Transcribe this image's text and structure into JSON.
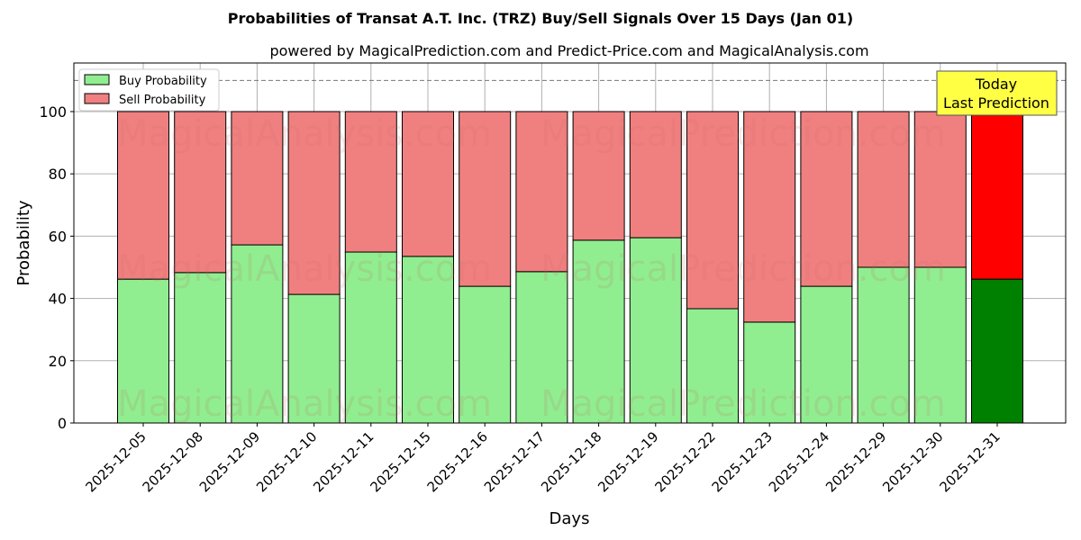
{
  "chart_data": {
    "type": "bar",
    "stacked": true,
    "title": "Probabilities of Transat A.T. Inc. (TRZ) Buy/Sell Signals Over 15 Days (Jan 01)",
    "subtitle": "powered by MagicalPrediction.com and Predict-Price.com and MagicalAnalysis.com",
    "xlabel": "Days",
    "ylabel": "Probability",
    "ylim": [
      0,
      115.6
    ],
    "yticks": [
      0,
      20,
      40,
      60,
      80,
      100
    ],
    "grid": true,
    "legend_position": "top-left",
    "reference_line": 110,
    "categories": [
      "2025-12-05",
      "2025-12-08",
      "2025-12-09",
      "2025-12-10",
      "2025-12-11",
      "2025-12-15",
      "2025-12-16",
      "2025-12-17",
      "2025-12-18",
      "2025-12-19",
      "2025-12-22",
      "2025-12-23",
      "2025-12-24",
      "2025-12-29",
      "2025-12-30",
      "2025-12-31"
    ],
    "series": [
      {
        "name": "Buy Probability",
        "color": "#90ee90",
        "today_color": "#008000",
        "values": [
          46.2,
          48.3,
          57.2,
          41.3,
          54.9,
          53.5,
          43.9,
          48.6,
          58.7,
          59.5,
          36.7,
          32.4,
          43.9,
          50.0,
          50.0,
          46.2
        ]
      },
      {
        "name": "Sell Probability",
        "color": "#f08080",
        "today_color": "#ff0000",
        "values": [
          53.8,
          51.7,
          42.8,
          58.7,
          45.1,
          46.5,
          56.1,
          51.4,
          41.3,
          40.5,
          63.3,
          67.6,
          56.1,
          50.0,
          50.0,
          53.8
        ]
      }
    ],
    "annotation": {
      "line1": "Today",
      "line2": "Last Prediction",
      "color": "#ffff44"
    },
    "watermarks": [
      "MagicalAnalysis.com",
      "MagicalPrediction.com"
    ]
  }
}
